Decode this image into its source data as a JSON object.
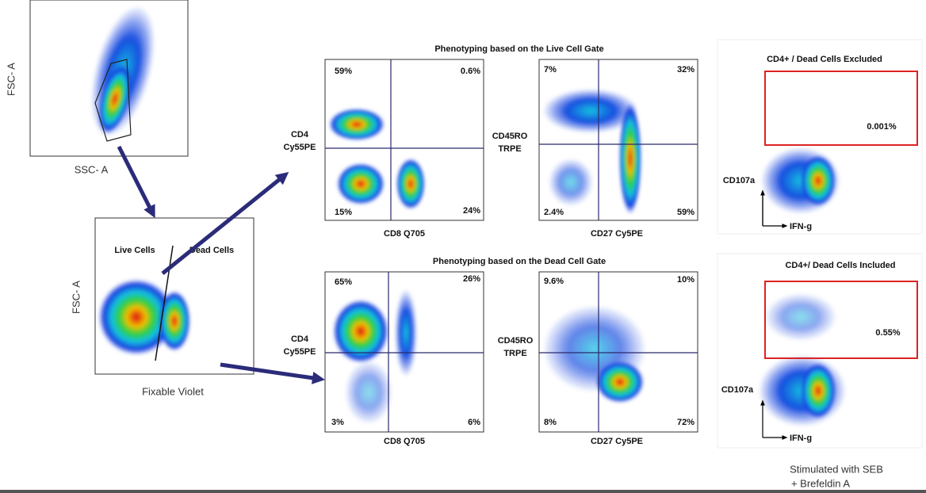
{
  "gating": {
    "fsc_ssc": {
      "y_label": "FSC- A",
      "x_label": "SSC- A"
    },
    "viability": {
      "y_label": "FSC- A",
      "x_label": "Fixable Violet",
      "gates": [
        "Live Cells",
        "Dead Cells"
      ]
    }
  },
  "live_gate": {
    "title": "Phenotyping based on the Live Cell Gate",
    "plots": [
      {
        "y_label": [
          "CD4",
          "Cy55PE"
        ],
        "x_label": "CD8 Q705",
        "quadrants": [
          "59%",
          "0.6%",
          "15%",
          "24%"
        ]
      },
      {
        "y_label": [
          "CD45RO",
          "TRPE"
        ],
        "x_label": "CD27 Cy5PE",
        "quadrants": [
          "7%",
          "32%",
          "2.4%",
          "59%"
        ]
      }
    ]
  },
  "dead_gate": {
    "title": "Phenotyping based on the Dead Cell Gate",
    "plots": [
      {
        "y_label": [
          "CD4",
          "Cy55PE"
        ],
        "x_label": "CD8 Q705",
        "quadrants": [
          "65%",
          "26%",
          "3%",
          "6%"
        ]
      },
      {
        "y_label": [
          "CD45RO",
          "TRPE"
        ],
        "x_label": "CD27 Cy5PE",
        "quadrants": [
          "9.6%",
          "10%",
          "8%",
          "72%"
        ]
      }
    ]
  },
  "cytokine": [
    {
      "title": "CD4+ / Dead Cells Excluded",
      "gate_value": "0.001%",
      "y_label": "CD107a",
      "x_label": "IFN-g"
    },
    {
      "title": "CD4+/ Dead Cells Included",
      "gate_value": "0.55%",
      "y_label": "CD107a",
      "x_label": "IFN-g"
    }
  ],
  "note": [
    "Stimulated with SEB",
    "+ Brefeldin A"
  ]
}
